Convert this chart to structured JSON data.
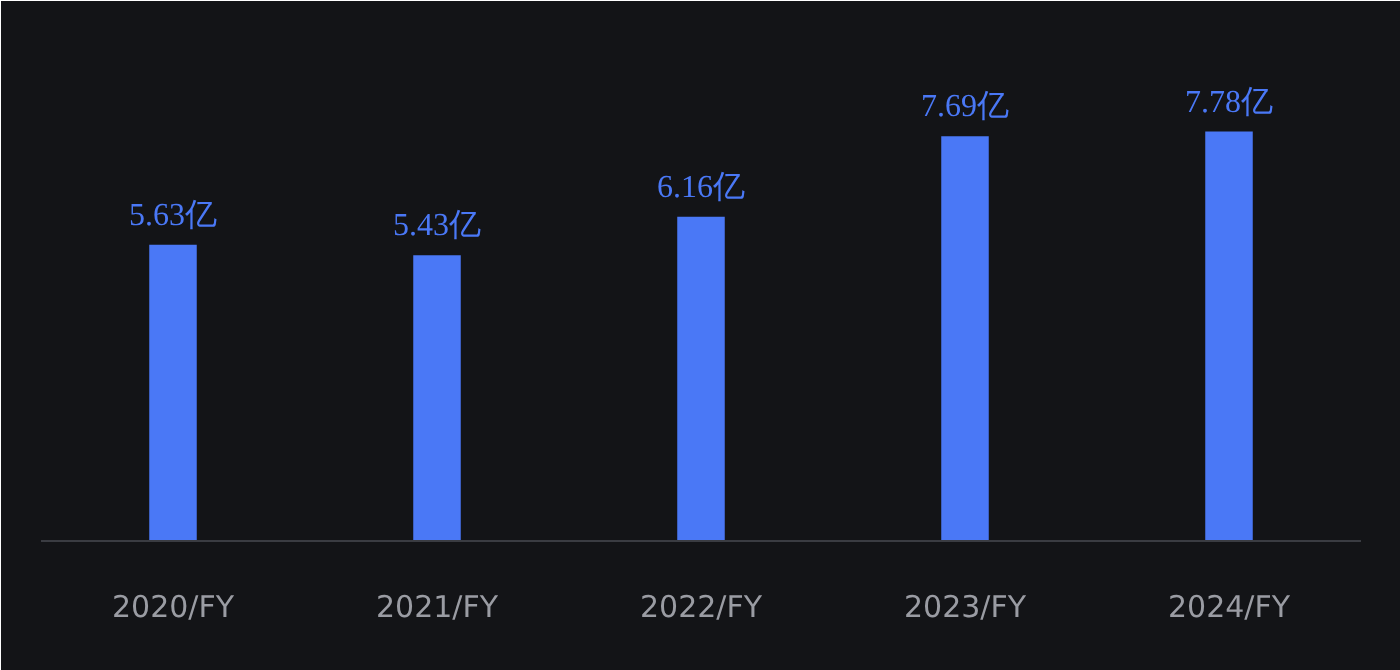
{
  "chart_data": {
    "type": "bar",
    "categories": [
      "2020/FY",
      "2021/FY",
      "2022/FY",
      "2023/FY",
      "2024/FY"
    ],
    "values": [
      5.63,
      5.43,
      6.16,
      7.69,
      7.78
    ],
    "value_labels": [
      "5.63亿",
      "5.43亿",
      "6.16亿",
      "7.69亿",
      "7.78亿"
    ],
    "color": "#4a78f6",
    "tick_labels": "x",
    "grid": false
  }
}
